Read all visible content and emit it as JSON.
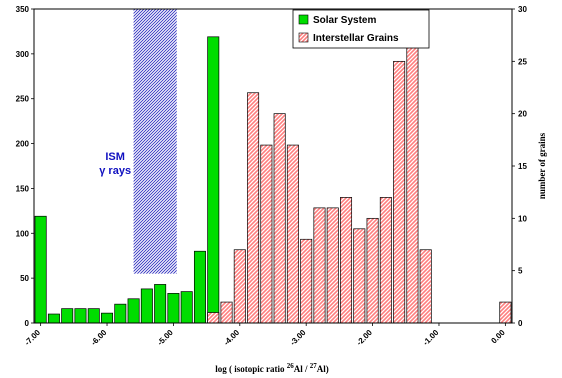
{
  "chart_data": {
    "type": "bar",
    "xlabel_main": "log ( isotopic ratio ",
    "xlabel_sup1": "26",
    "xlabel_mid": "Al / ",
    "xlabel_sup2": "27",
    "xlabel_end": "Al)",
    "ylabel_right": "number of grains",
    "xlim": [
      -7.1,
      0.1
    ],
    "ylim_left": [
      0,
      350
    ],
    "ylim_right": [
      0,
      30
    ],
    "x_ticks": [
      -7.0,
      -6.0,
      -5.0,
      -4.0,
      -3.0,
      -2.0,
      -1.0,
      0.0
    ],
    "x_tick_labels": [
      "-7.00",
      "-6.00",
      "-5.00",
      "-4.00",
      "-3.00",
      "-2.00",
      "-1.00",
      "0.00"
    ],
    "y_left_ticks": [
      0,
      50,
      100,
      150,
      200,
      250,
      300,
      350
    ],
    "y_right_ticks": [
      0,
      5,
      10,
      15,
      20,
      25,
      30
    ],
    "bin_width": 0.2,
    "legend_position": "top-right",
    "series": [
      {
        "name": "Solar System",
        "color": "#00dd00",
        "axis": "left",
        "x": [
          -7.0,
          -6.8,
          -6.6,
          -6.4,
          -6.2,
          -6.0,
          -5.8,
          -5.6,
          -5.4,
          -5.2,
          -5.0,
          -4.8,
          -4.6,
          -4.4,
          -4.2,
          -4.0
        ],
        "values": [
          119,
          10,
          16,
          16,
          16,
          11,
          21,
          27,
          38,
          43,
          33,
          35,
          80,
          319,
          0,
          0
        ]
      },
      {
        "name": "Interstellar Grains",
        "color": "#ff9999",
        "pattern": "hatched",
        "axis": "right",
        "x": [
          -4.4,
          -4.2,
          -4.0,
          -3.8,
          -3.6,
          -3.4,
          -3.2,
          -3.0,
          -2.8,
          -2.6,
          -2.4,
          -2.2,
          -2.0,
          -1.8,
          -1.6,
          -1.4,
          -1.2,
          -1.0,
          -0.8,
          -0.6,
          -0.4,
          -0.2,
          0.0
        ],
        "values": [
          1,
          2,
          7,
          22,
          17,
          20,
          17,
          8,
          11,
          11,
          12,
          9,
          10,
          12,
          25,
          27,
          7,
          0,
          0,
          0,
          0,
          0,
          2
        ]
      }
    ],
    "annotation": {
      "line1": "ISM",
      "line2": "γ rays",
      "band_x_range": [
        -5.6,
        -4.95
      ],
      "band_y_range": [
        55,
        350
      ]
    }
  }
}
